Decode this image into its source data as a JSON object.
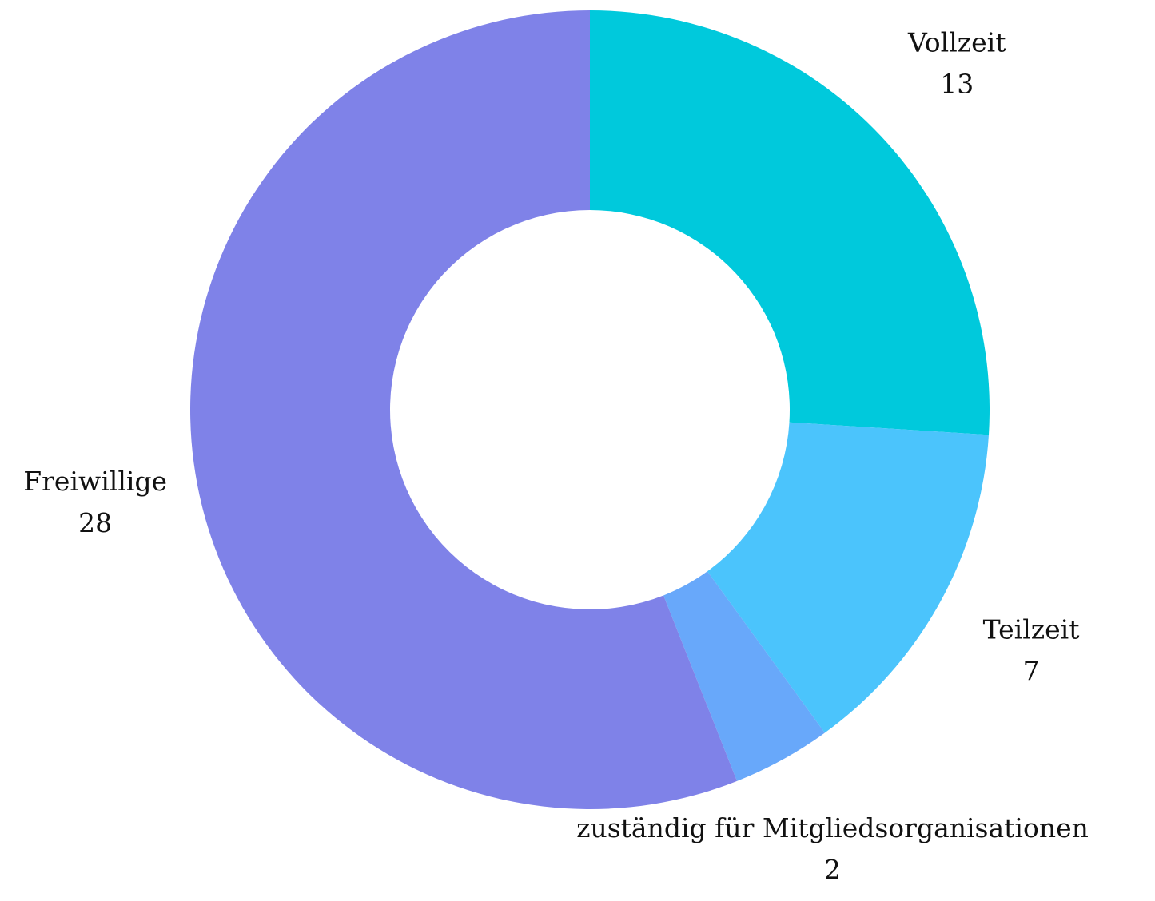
{
  "chart_data": {
    "type": "donut",
    "categories": [
      "Vollzeit",
      "Teilzeit",
      "zuständig für Mitgliedsorganisationen",
      "Freiwillige"
    ],
    "values": [
      13,
      7,
      2,
      28
    ],
    "colors": [
      "#00c9dc",
      "#4bc4fc",
      "#68a8fa",
      "#7f82e8"
    ]
  }
}
